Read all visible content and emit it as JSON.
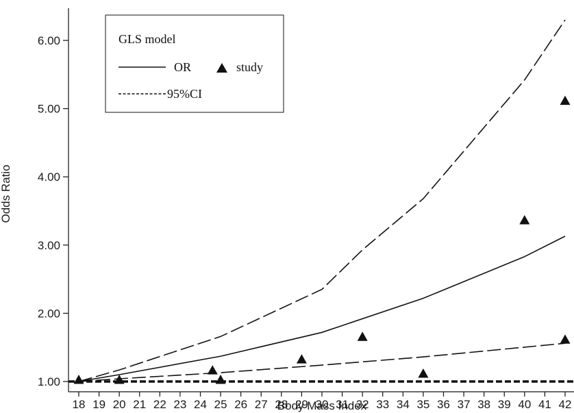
{
  "chart_data": {
    "type": "line",
    "xlabel": "Body Mass Index",
    "ylabel": "Odds Ratio",
    "xlim": [
      18,
      42
    ],
    "ylim": [
      1.0,
      6.3
    ],
    "x_ticks": [
      "18",
      "19",
      "20",
      "21",
      "22",
      "23",
      "24",
      "25",
      "26",
      "27",
      "28",
      "29",
      "30",
      "31",
      "32",
      "33",
      "34",
      "35",
      "36",
      "37",
      "38",
      "39",
      "40",
      "41",
      "42"
    ],
    "y_ticks": [
      "1.00",
      "2.00",
      "3.00",
      "4.00",
      "5.00",
      "6.00"
    ],
    "reference_line": 1.0,
    "legend": {
      "title": "GLS model",
      "placement": "top-left",
      "entries": [
        {
          "label": "OR",
          "style": "solid"
        },
        {
          "label": "study",
          "style": "triangle"
        },
        {
          "label": "95%CI",
          "style": "dashed"
        }
      ]
    },
    "series": [
      {
        "name": "OR",
        "style": "solid",
        "x": [
          18,
          20,
          25,
          30,
          35,
          40,
          42
        ],
        "y": [
          1.0,
          1.1,
          1.37,
          1.72,
          2.22,
          2.83,
          3.13
        ]
      },
      {
        "name": "95%CI",
        "style": "dashed",
        "x": [
          18,
          20,
          25,
          30,
          32,
          35,
          40,
          42
        ],
        "y": [
          1.0,
          1.17,
          1.66,
          2.35,
          2.93,
          3.68,
          5.42,
          6.3
        ]
      },
      {
        "name": "95%CI lower",
        "style": "dashed",
        "x": [
          18,
          20,
          25,
          30,
          35,
          42
        ],
        "y": [
          1.0,
          1.04,
          1.13,
          1.24,
          1.36,
          1.56
        ]
      },
      {
        "name": "study",
        "style": "triangle",
        "x": [
          18,
          20,
          24.6,
          25,
          29,
          32,
          35,
          40,
          42,
          42
        ],
        "y": [
          1.02,
          1.02,
          1.16,
          1.02,
          1.32,
          1.65,
          1.11,
          3.36,
          5.11,
          1.61
        ]
      }
    ]
  }
}
